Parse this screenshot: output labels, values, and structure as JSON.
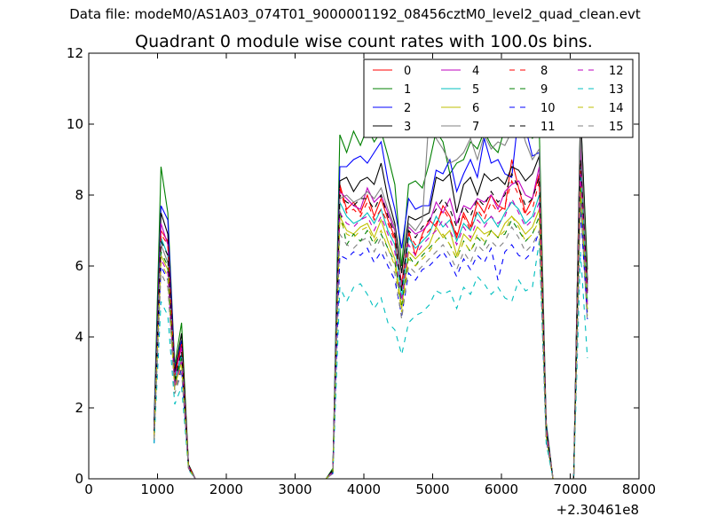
{
  "figure": {
    "suptitle": "Data file: modeM0/AS1A03_074T01_9000001192_08456cztM0_level2_quad_clean.evt",
    "title": "Quadrant 0 module wise count rates with 100.0s bins."
  },
  "chart_data": {
    "type": "line",
    "title": "Quadrant 0 module wise count rates with 100.0s bins.",
    "xlabel": "",
    "ylabel": "",
    "x_offset_label": "+2.30461e8",
    "xlim": [
      0,
      8000
    ],
    "ylim": [
      0,
      12
    ],
    "xticks": [
      0,
      1000,
      2000,
      3000,
      4000,
      5000,
      6000,
      7000,
      8000
    ],
    "xtick_labels": [
      "0",
      "1000",
      "2000",
      "3000",
      "4000",
      "5000",
      "6000",
      "7000",
      "8000"
    ],
    "yticks": [
      0,
      2,
      4,
      6,
      8,
      10,
      12
    ],
    "ytick_labels": [
      "0",
      "2",
      "4",
      "6",
      "8",
      "10",
      "12"
    ],
    "grid": false,
    "legend_position": "top-right",
    "legend_columns": 4,
    "x": [
      950,
      1050,
      1150,
      1250,
      1350,
      1450,
      1550,
      1650,
      1750,
      1850,
      1950,
      2050,
      2150,
      2250,
      2350,
      2450,
      2550,
      2650,
      2750,
      2850,
      2950,
      3050,
      3150,
      3250,
      3350,
      3450,
      3550,
      3650,
      3750,
      3850,
      3950,
      4050,
      4150,
      4250,
      4350,
      4450,
      4550,
      4650,
      4750,
      4850,
      4950,
      5050,
      5150,
      5250,
      5350,
      5450,
      5550,
      5650,
      5750,
      5850,
      5950,
      6050,
      6150,
      6250,
      6350,
      6450,
      6550,
      6650,
      6750,
      6850,
      6950,
      7050,
      7150,
      7250
    ],
    "series": [
      {
        "name": "0",
        "color": "#ff0000",
        "dash": "solid",
        "values": [
          1.3,
          7.0,
          6.7,
          3.0,
          3.8,
          0.35,
          0,
          0,
          0,
          0,
          0,
          0,
          0,
          0,
          0,
          0,
          0,
          0,
          0,
          0,
          0,
          0,
          0,
          0,
          0,
          0,
          0.2,
          8.3,
          7.6,
          7.8,
          7.5,
          8.0,
          7.4,
          7.9,
          7.3,
          6.8,
          5.5,
          7.0,
          6.3,
          6.9,
          7.3,
          7.1,
          7.7,
          7.4,
          6.8,
          7.5,
          7.1,
          7.8,
          7.5,
          8.0,
          7.7,
          7.6,
          9.0,
          8.2,
          7.5,
          7.9,
          8.6,
          1.4,
          0,
          0,
          0,
          0,
          9.1,
          5.4
        ]
      },
      {
        "name": "1",
        "color": "#008000",
        "dash": "solid",
        "values": [
          1.6,
          8.8,
          7.5,
          3.2,
          4.4,
          0.4,
          0,
          0,
          0,
          0,
          0,
          0,
          0,
          0,
          0,
          0,
          0,
          0,
          0,
          0,
          0,
          0,
          0,
          0,
          0,
          0,
          0.3,
          9.7,
          9.2,
          9.8,
          9.4,
          9.9,
          9.5,
          9.8,
          9.1,
          8.3,
          6.0,
          8.3,
          8.4,
          8.2,
          8.9,
          9.8,
          9.5,
          8.6,
          8.9,
          9.0,
          9.5,
          9.3,
          9.8,
          9.4,
          9.2,
          9.9,
          10.0,
          9.8,
          9.9,
          9.6,
          9.9,
          1.6,
          0,
          0,
          0,
          0,
          10.3,
          5.9
        ]
      },
      {
        "name": "2",
        "color": "#0000ff",
        "dash": "solid",
        "values": [
          1.5,
          7.7,
          7.3,
          3.1,
          3.9,
          0.35,
          0,
          0,
          0,
          0,
          0,
          0,
          0,
          0,
          0,
          0,
          0,
          0,
          0,
          0,
          0,
          0,
          0,
          0,
          0,
          0,
          0.25,
          8.8,
          8.8,
          9.0,
          9.1,
          8.9,
          9.2,
          9.5,
          8.4,
          7.6,
          6.5,
          7.9,
          7.6,
          7.7,
          7.7,
          8.7,
          8.6,
          9.0,
          8.1,
          8.6,
          9.0,
          8.5,
          9.6,
          8.9,
          9.0,
          8.6,
          8.5,
          10.3,
          9.9,
          9.1,
          9.2,
          1.5,
          0,
          0,
          0,
          0,
          10.1,
          5.5
        ]
      },
      {
        "name": "3",
        "color": "#000000",
        "dash": "solid",
        "values": [
          1.4,
          7.5,
          6.9,
          3.0,
          4.1,
          0.4,
          0,
          0,
          0,
          0,
          0,
          0,
          0,
          0,
          0,
          0,
          0,
          0,
          0,
          0,
          0,
          0,
          0,
          0,
          0,
          0,
          0.25,
          8.4,
          8.5,
          8.1,
          8.4,
          8.5,
          8.3,
          8.9,
          7.9,
          7.2,
          5.8,
          7.4,
          7.3,
          7.4,
          7.5,
          8.5,
          8.4,
          8.6,
          7.5,
          8.3,
          8.5,
          8.0,
          8.6,
          8.4,
          8.5,
          8.3,
          8.8,
          8.7,
          8.4,
          8.6,
          9.1,
          1.4,
          0,
          0,
          0,
          0,
          10.4,
          5.6
        ]
      },
      {
        "name": "4",
        "color": "#bf00bf",
        "dash": "solid",
        "values": [
          1.3,
          7.2,
          6.6,
          2.9,
          3.7,
          0.35,
          0,
          0,
          0,
          0,
          0,
          0,
          0,
          0,
          0,
          0,
          0,
          0,
          0,
          0,
          0,
          0,
          0,
          0,
          0,
          0,
          0.2,
          8.1,
          7.9,
          7.7,
          7.6,
          8.2,
          7.8,
          8.0,
          7.5,
          7.0,
          5.4,
          7.1,
          6.9,
          7.0,
          7.2,
          7.8,
          7.5,
          7.9,
          7.2,
          7.7,
          7.6,
          7.9,
          7.8,
          8.0,
          7.6,
          8.1,
          8.3,
          8.4,
          8.0,
          7.9,
          8.8,
          1.4,
          0,
          0,
          0,
          0,
          9.4,
          5.3
        ]
      },
      {
        "name": "5",
        "color": "#00bfbf",
        "dash": "solid",
        "values": [
          1.2,
          6.8,
          6.3,
          2.8,
          3.5,
          0.3,
          0,
          0,
          0,
          0,
          0,
          0,
          0,
          0,
          0,
          0,
          0,
          0,
          0,
          0,
          0,
          0,
          0,
          0,
          0,
          0,
          0.2,
          7.8,
          7.4,
          7.2,
          7.3,
          7.5,
          7.2,
          7.6,
          7.0,
          6.6,
          5.1,
          6.8,
          6.5,
          6.7,
          6.9,
          7.4,
          7.1,
          7.3,
          6.7,
          7.2,
          7.0,
          7.5,
          7.2,
          7.4,
          7.1,
          7.5,
          7.8,
          7.6,
          7.2,
          7.4,
          8.0,
          1.3,
          0,
          0,
          0,
          0,
          8.8,
          5.0
        ]
      },
      {
        "name": "6",
        "color": "#bfbf00",
        "dash": "solid",
        "values": [
          1.1,
          6.3,
          5.9,
          2.6,
          3.3,
          0.3,
          0,
          0,
          0,
          0,
          0,
          0,
          0,
          0,
          0,
          0,
          0,
          0,
          0,
          0,
          0,
          0,
          0,
          0,
          0,
          0,
          0.2,
          7.4,
          7.0,
          6.9,
          7.1,
          7.2,
          6.8,
          7.3,
          6.7,
          6.2,
          4.8,
          6.4,
          6.2,
          6.4,
          6.6,
          7.1,
          6.8,
          7.0,
          6.3,
          6.9,
          6.7,
          7.1,
          6.9,
          7.0,
          6.8,
          7.2,
          7.4,
          7.2,
          6.9,
          7.1,
          7.6,
          1.2,
          0,
          0,
          0,
          0,
          8.3,
          4.7
        ]
      },
      {
        "name": "7",
        "color": "#808080",
        "dash": "solid",
        "values": [
          1.2,
          6.6,
          6.1,
          2.7,
          3.4,
          0.3,
          0,
          0,
          0,
          0,
          0,
          0,
          0,
          0,
          0,
          0,
          0,
          0,
          0,
          0,
          0,
          0,
          0,
          0,
          0,
          0,
          0.2,
          7.9,
          8.0,
          7.8,
          7.9,
          8.1,
          7.9,
          8.2,
          7.6,
          7.1,
          5.3,
          7.2,
          7.0,
          7.3,
          10.3,
          9.6,
          9.3,
          8.9,
          9.0,
          9.2,
          9.6,
          9.0,
          9.7,
          9.3,
          9.5,
          9.4,
          9.8,
          10.2,
          9.5,
          9.0,
          9.3,
          1.4,
          0,
          0,
          0,
          0,
          9.8,
          5.4
        ]
      },
      {
        "name": "8",
        "color": "#ff0000",
        "dash": "dashed",
        "values": [
          1.3,
          6.9,
          6.6,
          2.9,
          3.8,
          0.35,
          0,
          0,
          0,
          0,
          0,
          0,
          0,
          0,
          0,
          0,
          0,
          0,
          0,
          0,
          0,
          0,
          0,
          0,
          0,
          0,
          0.2,
          8.2,
          7.5,
          7.6,
          7.4,
          7.8,
          7.3,
          7.6,
          7.2,
          6.7,
          5.4,
          6.9,
          6.6,
          6.8,
          7.0,
          7.2,
          7.6,
          7.3,
          6.9,
          7.4,
          7.0,
          7.6,
          7.3,
          7.8,
          7.5,
          7.7,
          8.4,
          8.0,
          7.4,
          7.6,
          8.4,
          1.4,
          0,
          0,
          0,
          0,
          8.9,
          5.3
        ]
      },
      {
        "name": "9",
        "color": "#008000",
        "dash": "dashed",
        "values": [
          1.2,
          6.4,
          6.0,
          2.7,
          3.4,
          0.3,
          0,
          0,
          0,
          0,
          0,
          0,
          0,
          0,
          0,
          0,
          0,
          0,
          0,
          0,
          0,
          0,
          0,
          0,
          0,
          0,
          0.2,
          7.6,
          6.6,
          6.9,
          6.7,
          7.0,
          6.6,
          6.9,
          6.5,
          6.1,
          4.9,
          6.3,
          6.0,
          6.3,
          6.5,
          6.7,
          6.9,
          6.6,
          6.2,
          6.7,
          6.4,
          6.8,
          6.6,
          7.0,
          6.8,
          6.9,
          7.3,
          7.0,
          6.7,
          6.9,
          7.4,
          1.2,
          0,
          0,
          0,
          0,
          8.2,
          4.8
        ]
      },
      {
        "name": "10",
        "color": "#0000ff",
        "dash": "dashed",
        "values": [
          1.0,
          6.0,
          5.6,
          2.5,
          3.1,
          0.3,
          0,
          0,
          0,
          0,
          0,
          0,
          0,
          0,
          0,
          0,
          0,
          0,
          0,
          0,
          0,
          0,
          0,
          0,
          0,
          0,
          0.15,
          6.3,
          6.2,
          6.4,
          6.3,
          6.5,
          6.1,
          6.4,
          6.0,
          5.6,
          4.6,
          5.8,
          5.6,
          5.9,
          6.0,
          6.2,
          6.4,
          6.1,
          5.7,
          6.2,
          5.9,
          6.3,
          6.1,
          6.5,
          5.6,
          6.4,
          6.6,
          6.3,
          6.2,
          6.4,
          7.0,
          1.1,
          0,
          0,
          0,
          0,
          7.6,
          4.5
        ]
      },
      {
        "name": "11",
        "color": "#000000",
        "dash": "dashed",
        "values": [
          1.3,
          6.7,
          6.3,
          2.8,
          3.6,
          0.3,
          0,
          0,
          0,
          0,
          0,
          0,
          0,
          0,
          0,
          0,
          0,
          0,
          0,
          0,
          0,
          0,
          0,
          0,
          0,
          0,
          0.2,
          8.0,
          7.8,
          7.7,
          7.9,
          7.9,
          7.6,
          8.0,
          7.4,
          6.9,
          5.3,
          7.0,
          6.8,
          7.1,
          7.3,
          7.6,
          7.9,
          7.6,
          7.1,
          7.7,
          7.4,
          7.9,
          7.7,
          8.1,
          7.8,
          8.0,
          8.6,
          8.2,
          7.7,
          7.9,
          8.5,
          1.4,
          0,
          0,
          0,
          0,
          9.0,
          5.2
        ]
      },
      {
        "name": "12",
        "color": "#bf00bf",
        "dash": "dashed",
        "values": [
          1.2,
          6.2,
          5.8,
          2.6,
          3.3,
          0.3,
          0,
          0,
          0,
          0,
          0,
          0,
          0,
          0,
          0,
          0,
          0,
          0,
          0,
          0,
          0,
          0,
          0,
          0,
          0,
          0,
          0.2,
          7.5,
          7.2,
          7.1,
          7.3,
          7.4,
          7.0,
          7.4,
          6.9,
          6.4,
          5.0,
          6.6,
          6.3,
          6.6,
          6.8,
          7.0,
          7.3,
          7.0,
          6.6,
          7.1,
          6.8,
          7.3,
          7.1,
          7.4,
          7.2,
          7.4,
          7.9,
          7.5,
          7.1,
          7.3,
          7.8,
          1.3,
          0,
          0,
          0,
          0,
          8.6,
          4.9
        ]
      },
      {
        "name": "13",
        "color": "#00bfbf",
        "dash": "dashed",
        "values": [
          1.0,
          5.0,
          4.6,
          2.1,
          2.6,
          0.25,
          0,
          0,
          0,
          0,
          0,
          0,
          0,
          0,
          0,
          0,
          0,
          0,
          0,
          0,
          0,
          0,
          0,
          0,
          0,
          0,
          0.15,
          5.4,
          5.0,
          5.4,
          5.5,
          5.2,
          4.8,
          5.1,
          4.4,
          4.2,
          3.5,
          4.4,
          4.6,
          4.7,
          4.9,
          5.3,
          5.2,
          5.3,
          4.8,
          5.4,
          5.2,
          5.7,
          5.5,
          5.2,
          5.4,
          5.1,
          5.0,
          5.6,
          5.3,
          5.4,
          6.7,
          1.0,
          0,
          0,
          0,
          0,
          6.4,
          3.4
        ]
      },
      {
        "name": "14",
        "color": "#bfbf00",
        "dash": "dashed",
        "values": [
          1.2,
          6.1,
          5.7,
          2.5,
          3.2,
          0.3,
          0,
          0,
          0,
          0,
          0,
          0,
          0,
          0,
          0,
          0,
          0,
          0,
          0,
          0,
          0,
          0,
          0,
          0,
          0,
          0,
          0.2,
          7.3,
          6.9,
          6.8,
          7.0,
          7.1,
          6.7,
          7.0,
          6.5,
          6.0,
          4.7,
          6.2,
          6.0,
          6.2,
          6.4,
          6.7,
          6.9,
          6.6,
          6.2,
          6.7,
          6.4,
          6.9,
          6.7,
          7.0,
          6.8,
          7.0,
          7.4,
          7.1,
          6.7,
          6.9,
          7.3,
          1.2,
          0,
          0,
          0,
          0,
          8.1,
          4.6
        ]
      },
      {
        "name": "15",
        "color": "#808080",
        "dash": "dashed",
        "values": [
          1.1,
          5.8,
          5.4,
          2.4,
          3.0,
          0.3,
          0,
          0,
          0,
          0,
          0,
          0,
          0,
          0,
          0,
          0,
          0,
          0,
          0,
          0,
          0,
          0,
          0,
          0,
          0,
          0,
          0.15,
          6.9,
          6.6,
          6.5,
          6.7,
          6.8,
          6.4,
          6.8,
          6.2,
          5.8,
          4.5,
          6.0,
          5.8,
          6.0,
          6.2,
          6.4,
          6.6,
          6.3,
          5.9,
          6.4,
          6.1,
          6.6,
          6.4,
          6.7,
          6.5,
          6.7,
          7.1,
          6.8,
          6.4,
          6.6,
          7.0,
          1.2,
          0,
          0,
          0,
          0,
          7.8,
          4.4
        ]
      }
    ]
  }
}
